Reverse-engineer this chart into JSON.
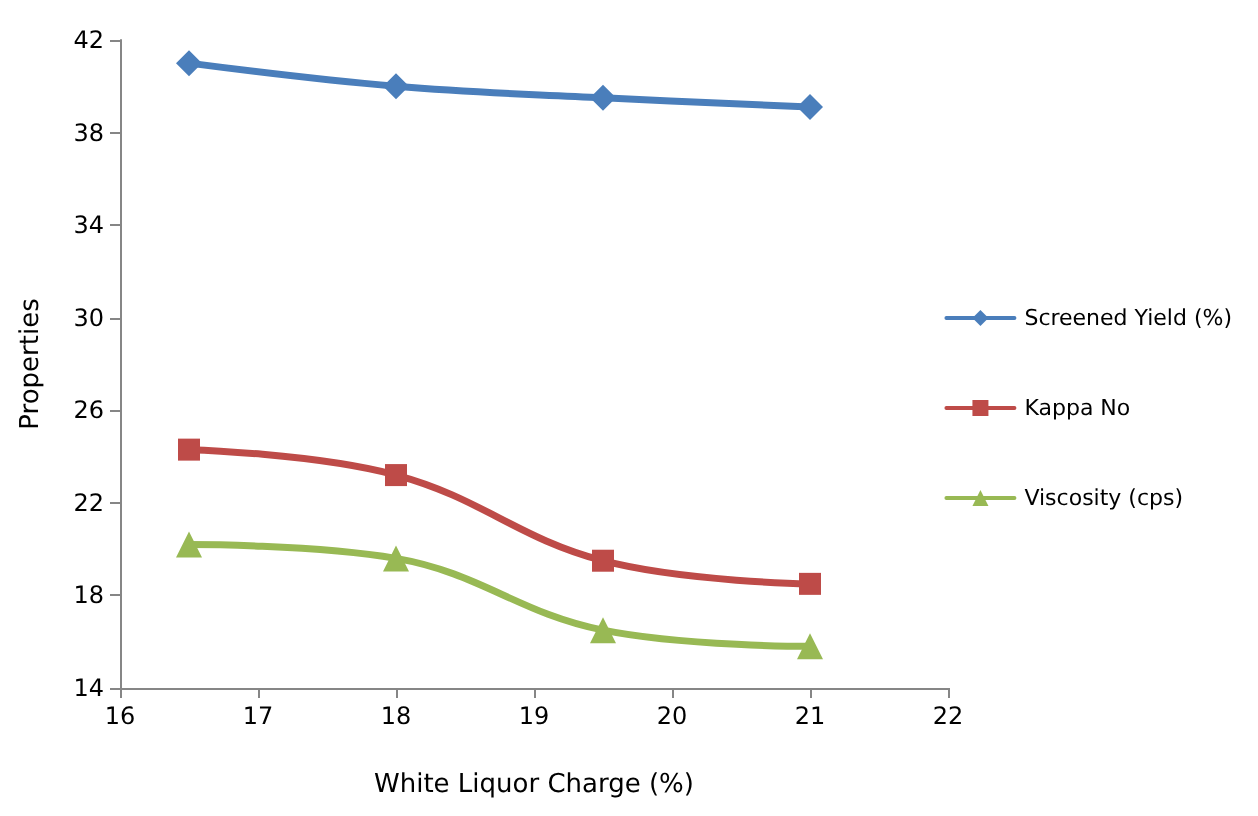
{
  "chart_data": {
    "type": "line",
    "xlabel": "White Liquor Charge (%)",
    "ylabel": "Properties",
    "x": [
      16.5,
      18,
      19.5,
      21
    ],
    "series": [
      {
        "name": "Screened Yield (%)",
        "color": "#4a7ebb",
        "marker": "diamond",
        "values": [
          41.0,
          40.0,
          39.5,
          39.1
        ]
      },
      {
        "name": "Kappa No",
        "color": "#be4b48",
        "marker": "square",
        "values": [
          24.3,
          23.2,
          19.5,
          18.5
        ]
      },
      {
        "name": "Viscosity (cps)",
        "color": "#98b954",
        "marker": "triangle",
        "values": [
          20.2,
          19.6,
          16.5,
          15.8
        ]
      }
    ],
    "xlim": [
      16,
      22
    ],
    "xticks": [
      16,
      17,
      18,
      19,
      20,
      21,
      22
    ],
    "ylim": [
      14,
      42
    ],
    "yticks": [
      14,
      18,
      22,
      26,
      30,
      34,
      38,
      42
    ],
    "grid": false,
    "legend": "right",
    "line_style": "solid"
  }
}
